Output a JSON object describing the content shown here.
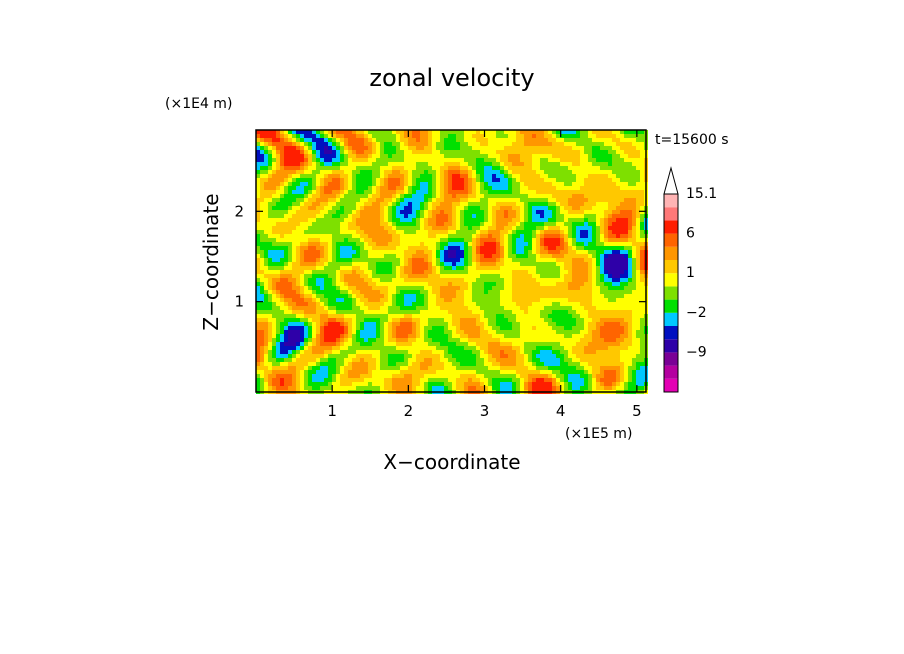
{
  "chart_data": {
    "type": "heatmap",
    "title": "zonal velocity",
    "xlabel": "X−coordinate",
    "ylabel": "Z−coordinate",
    "x_unit": "(×1E5 m)",
    "y_unit": "(×1E4 m)",
    "time_label": "t=15600 s",
    "xlim": [
      0,
      5.12
    ],
    "ylim": [
      0,
      2.9
    ],
    "x_ticks": [
      1,
      2,
      3,
      4,
      5
    ],
    "y_ticks": [
      1,
      2
    ],
    "colorbar": {
      "colors": [
        "#e400b4",
        "#b400a0",
        "#7a0096",
        "#2e00a8",
        "#0010c0",
        "#00c8ff",
        "#00e000",
        "#7ee000",
        "#ffff00",
        "#ffc800",
        "#ff9600",
        "#ff6400",
        "#ff1e00",
        "#ff7878",
        "#ffb4b4"
      ],
      "labels": [
        {
          "text": "15.1",
          "value": 15.1
        },
        {
          "text": "6",
          "value": 6
        },
        {
          "text": "1",
          "value": 1
        },
        {
          "text": "−2",
          "value": -2
        },
        {
          "text": "−9",
          "value": -9
        }
      ],
      "levels": [
        -15,
        -12,
        -9,
        -6,
        -4,
        -2,
        -1,
        0,
        1,
        2,
        4,
        6,
        9,
        12,
        15.1
      ],
      "extend_max": true
    }
  }
}
